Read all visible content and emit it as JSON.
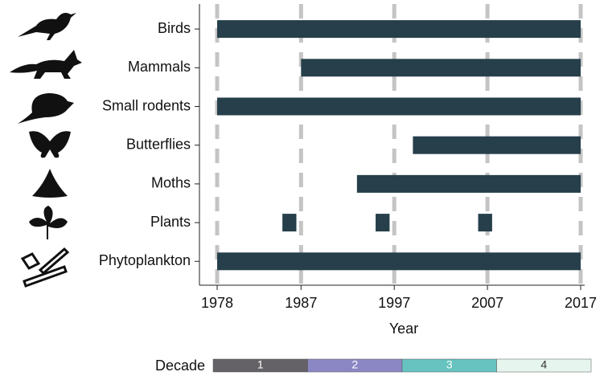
{
  "chart_data": {
    "type": "range-bar",
    "categories": [
      "Birds",
      "Mammals",
      "Small rodents",
      "Butterflies",
      "Moths",
      "Plants",
      "Phytoplankton"
    ],
    "ranges": [
      [
        [
          1978,
          2017
        ]
      ],
      [
        [
          1987,
          2017
        ]
      ],
      [
        [
          1978,
          2017
        ]
      ],
      [
        [
          1999,
          2017
        ]
      ],
      [
        [
          1993,
          2017
        ]
      ],
      [
        [
          1985,
          1986.5
        ],
        [
          1995,
          1996.5
        ],
        [
          2006,
          2007.5
        ]
      ],
      [
        [
          1978,
          2017
        ]
      ]
    ],
    "color": "#263f4b",
    "x_label": "Year",
    "xlim": [
      1978,
      2017
    ],
    "xticks": [
      1978,
      1987,
      1997,
      2007,
      2017
    ],
    "grid": true,
    "decade_legend": {
      "title": "Decade",
      "items": [
        {
          "label": "1",
          "color": "#646266"
        },
        {
          "label": "2",
          "color": "#8b87c5"
        },
        {
          "label": "3",
          "color": "#66c3bf"
        },
        {
          "label": "4",
          "color": "#e6f6ee"
        }
      ]
    }
  }
}
